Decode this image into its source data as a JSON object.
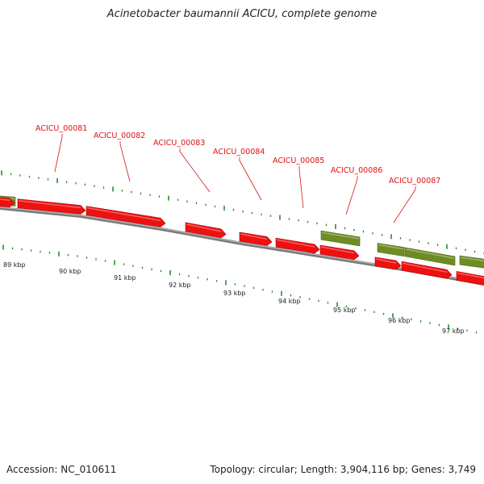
{
  "title": "Acinetobacter baumannii ACICU, complete genome",
  "footer": {
    "accession": "Accession: NC_010611",
    "topology": "Topology: circular; Length: 3,904,116 bp; Genes: 3,749"
  },
  "colors": {
    "forward_gene": "#ee1111",
    "reverse_gene": "#6f8c23",
    "backbone": "#7a7a7a",
    "ticks": "#2a8a2a",
    "gene_label": "#dd1111"
  },
  "kbp_ticks": [
    "89 kbp",
    "90 kbp",
    "91 kbp",
    "92 kbp",
    "93 kbp",
    "94 kbp",
    "95 kbp",
    "96 kbp",
    "97 kbp"
  ],
  "gene_labels": [
    "ACICU_00081",
    "ACICU_00082",
    "ACICU_00083",
    "ACICU_00084",
    "ACICU_00085",
    "ACICU_00086",
    "ACICU_00087"
  ]
}
